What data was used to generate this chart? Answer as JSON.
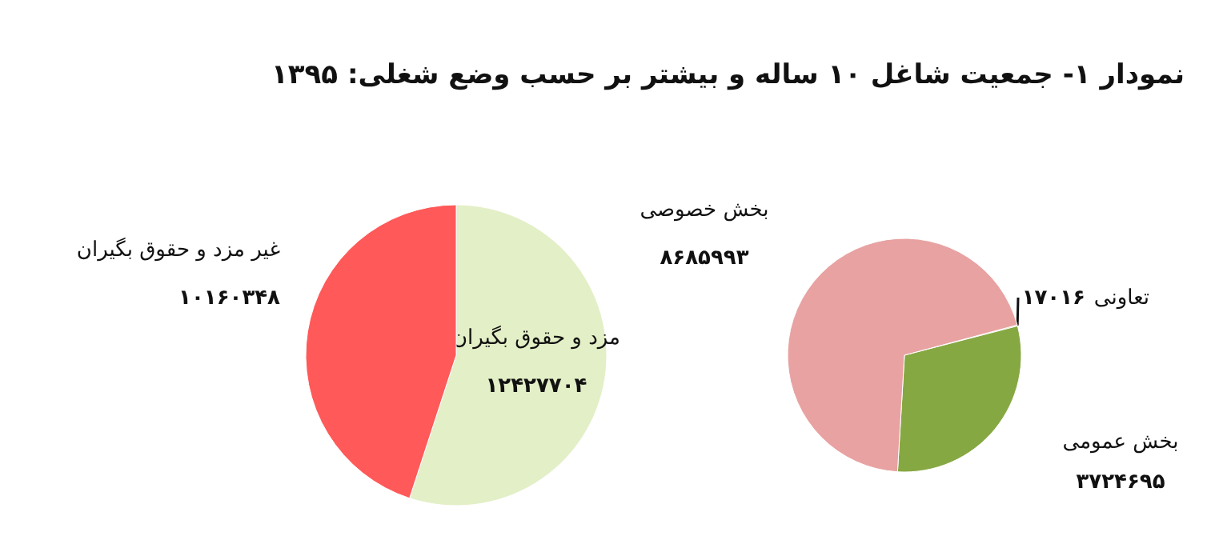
{
  "chart_data": [
    {
      "type": "pie",
      "title": "نمودار ۱- جمعیت شاغل ۱۰ ساله و بیشتر بر حسب وضع شغلی: ۱۳۹۵",
      "categories": [
        "مزد و حقوق بگیران",
        "غیر مزد و حقوق بگیران"
      ],
      "values": [
        12427704,
        10160348
      ],
      "colors": [
        "#e3efc6",
        "#ff5959"
      ],
      "value_labels": [
        "۱۲۴۲۷۷۰۴",
        "۱۰۱۶۰۳۴۸"
      ]
    },
    {
      "type": "pie",
      "categories": [
        "تعاونی",
        "بخش عمومی",
        "بخش خصوصی"
      ],
      "values": [
        17016,
        3724695,
        8685993
      ],
      "colors": [
        "#6f8f2f",
        "#86a842",
        "#e8a2a2"
      ],
      "value_labels": [
        "۱۷۰۱۶",
        "۳۷۲۴۶۹۵",
        "۸۶۸۵۹۹۳"
      ]
    }
  ]
}
